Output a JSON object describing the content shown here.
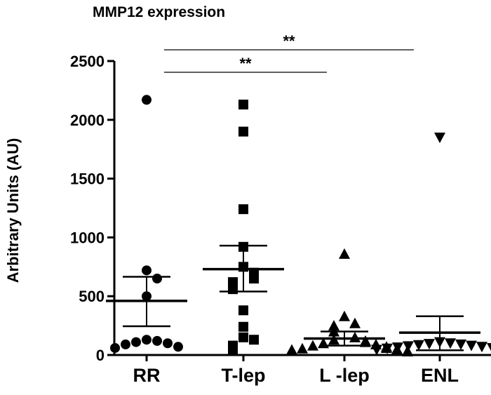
{
  "chart_data": {
    "type": "scatter",
    "title": "MMP12 expression",
    "xlabel": "",
    "ylabel": "Arbitrary Units (AU)",
    "ylim": [
      0,
      2500
    ],
    "yticks": [
      0,
      500,
      1000,
      1500,
      2000,
      2500
    ],
    "categories": [
      "RR",
      "T-lep",
      "L -lep",
      "ENL"
    ],
    "groups": [
      {
        "category": "RR",
        "marker": "circle",
        "points": [
          2170,
          720,
          650,
          500,
          130,
          120,
          110,
          100,
          90,
          70,
          60
        ],
        "mean": 460,
        "sem_low": 245,
        "sem_high": 665
      },
      {
        "category": "T-lep",
        "marker": "square",
        "points": [
          2130,
          1900,
          1240,
          920,
          750,
          700,
          650,
          620,
          600,
          560,
          380,
          240,
          150,
          130,
          80,
          60,
          40
        ],
        "mean": 730,
        "sem_low": 540,
        "sem_high": 930
      },
      {
        "category": "L -lep",
        "marker": "triangle-up",
        "points": [
          860,
          330,
          270,
          250,
          200,
          150,
          130,
          120,
          110,
          100,
          90,
          80,
          70,
          60,
          55,
          50,
          45,
          40,
          35,
          30
        ],
        "mean": 140,
        "sem_low": 80,
        "sem_high": 200
      },
      {
        "category": "ENL",
        "marker": "triangle-down",
        "points": [
          1850,
          110,
          100,
          95,
          90,
          85,
          80,
          75,
          70,
          65,
          60,
          55,
          50,
          45
        ],
        "mean": 190,
        "sem_low": 40,
        "sem_high": 330
      }
    ],
    "significance": [
      {
        "from": "RR",
        "to": "ENL",
        "label": "**"
      },
      {
        "from": "RR",
        "to": "L -lep",
        "label": "**"
      }
    ]
  }
}
